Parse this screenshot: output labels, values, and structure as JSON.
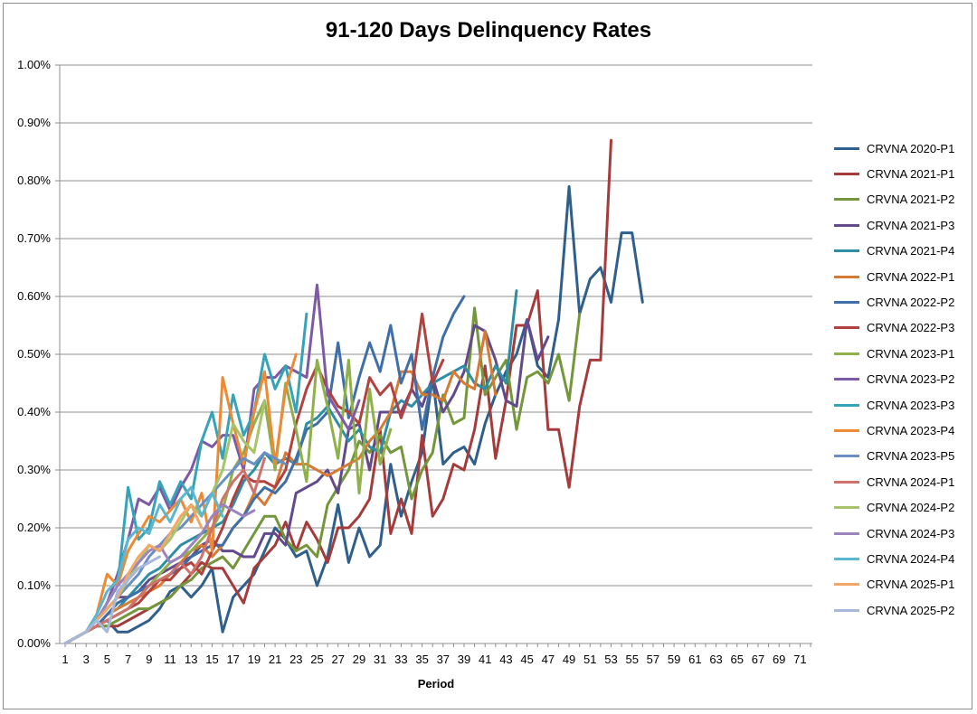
{
  "chart_data": {
    "type": "line",
    "title": "91-120 Days Delinquency Rates",
    "xlabel": "Period",
    "ylabel": "",
    "xlim": [
      1,
      72
    ],
    "ylim": [
      0,
      0.01
    ],
    "x_tick_labels": [
      "1",
      "3",
      "5",
      "7",
      "9",
      "11",
      "13",
      "15",
      "17",
      "19",
      "21",
      "23",
      "25",
      "27",
      "29",
      "31",
      "33",
      "35",
      "37",
      "39",
      "41",
      "43",
      "45",
      "47",
      "49",
      "51",
      "53",
      "55",
      "57",
      "59",
      "61",
      "63",
      "65",
      "67",
      "69",
      "71"
    ],
    "y_tick_labels": [
      "0.00%",
      "0.10%",
      "0.20%",
      "0.30%",
      "0.40%",
      "0.50%",
      "0.60%",
      "0.70%",
      "0.80%",
      "0.90%",
      "1.00%"
    ],
    "y_ticks": [
      0,
      0.001,
      0.002,
      0.003,
      0.004,
      0.005,
      0.006,
      0.007,
      0.008,
      0.009,
      0.01
    ],
    "grid": true,
    "legend_position": "right",
    "series": [
      {
        "name": "CRVNA 2020-P1",
        "color": "#2f5f8a",
        "x_start": 1,
        "values": [
          0,
          0.0001,
          0.0002,
          0.0003,
          0.0004,
          0.0002,
          0.0002,
          0.0003,
          0.0004,
          0.0006,
          0.0009,
          0.001,
          0.0008,
          0.001,
          0.0013,
          0.0002,
          0.0008,
          0.001,
          0.0012,
          0.0016,
          0.002,
          0.0018,
          0.0015,
          0.0016,
          0.001,
          0.0015,
          0.0024,
          0.0014,
          0.002,
          0.0015,
          0.0017,
          0.0031,
          0.0022,
          0.0028,
          0.0033,
          0.0046,
          0.0031,
          0.0033,
          0.0034,
          0.0031,
          0.0038,
          0.0043,
          0.0047,
          0.005,
          0.0056,
          0.0048,
          0.0046,
          0.0056,
          0.0079,
          0.0057,
          0.0063,
          0.0065,
          0.0059,
          0.0071,
          0.0071,
          0.0059
        ]
      },
      {
        "name": "CRVNA 2021-P1",
        "color": "#a53b3a",
        "x_start": 1,
        "values": [
          0,
          0.0001,
          0.0002,
          0.0003,
          0.0003,
          0.0003,
          0.0004,
          0.0005,
          0.0006,
          0.0007,
          0.0008,
          0.001,
          0.0012,
          0.0014,
          0.0013,
          0.0013,
          0.001,
          0.0007,
          0.0013,
          0.0015,
          0.0017,
          0.0021,
          0.0016,
          0.0021,
          0.0018,
          0.0014,
          0.002,
          0.002,
          0.0022,
          0.0025,
          0.0037,
          0.0019,
          0.0025,
          0.0019,
          0.0036,
          0.0022,
          0.0025,
          0.0031,
          0.003,
          0.0037,
          0.0048,
          0.0032,
          0.0042,
          0.0055,
          0.0055,
          0.0061,
          0.0037,
          0.0037,
          0.0027,
          0.0041,
          0.0049,
          0.0049,
          0.0087
        ]
      },
      {
        "name": "CRVNA 2021-P2",
        "color": "#73973a",
        "x_start": 1,
        "values": [
          0,
          0.0001,
          0.0002,
          0.0003,
          0.0003,
          0.0004,
          0.0005,
          0.0006,
          0.0006,
          0.0007,
          0.0008,
          0.001,
          0.0011,
          0.0013,
          0.0014,
          0.0015,
          0.0013,
          0.0016,
          0.0019,
          0.0022,
          0.0022,
          0.0018,
          0.0016,
          0.0017,
          0.0015,
          0.0024,
          0.0027,
          0.003,
          0.0035,
          0.0033,
          0.0036,
          0.0033,
          0.0034,
          0.0025,
          0.003,
          0.0033,
          0.0043,
          0.0038,
          0.0039,
          0.0058,
          0.0043,
          0.0046,
          0.0049,
          0.0037,
          0.0046,
          0.0047,
          0.0045,
          0.005,
          0.0042,
          0.0057
        ]
      },
      {
        "name": "CRVNA 2021-P3",
        "color": "#634a8a",
        "x_start": 1,
        "values": [
          0,
          0.0001,
          0.0002,
          0.0004,
          0.0006,
          0.0008,
          0.0008,
          0.0009,
          0.0011,
          0.0012,
          0.0013,
          0.0014,
          0.0015,
          0.0017,
          0.0018,
          0.0016,
          0.0016,
          0.0015,
          0.0015,
          0.0019,
          0.0019,
          0.0017,
          0.0026,
          0.0027,
          0.0028,
          0.003,
          0.0026,
          0.0037,
          0.0038,
          0.003,
          0.004,
          0.004,
          0.004,
          0.0044,
          0.0041,
          0.0046,
          0.004,
          0.0043,
          0.0047,
          0.0055,
          0.0054,
          0.0049,
          0.0042,
          0.0041,
          0.0056,
          0.0049,
          0.0053
        ]
      },
      {
        "name": "CRVNA 2021-P4",
        "color": "#2e8fa4",
        "x_start": 1,
        "values": [
          0,
          0.0001,
          0.0002,
          0.0003,
          0.0005,
          0.0006,
          0.0008,
          0.001,
          0.0012,
          0.0013,
          0.0015,
          0.0017,
          0.0018,
          0.0019,
          0.002,
          0.0021,
          0.0024,
          0.0028,
          0.003,
          0.0033,
          0.0031,
          0.0032,
          0.0031,
          0.0038,
          0.0039,
          0.0041,
          0.0038,
          0.0035,
          0.0037,
          0.0034,
          0.0033,
          0.004,
          0.0042,
          0.0041,
          0.0043,
          0.0045,
          0.0046,
          0.0047,
          0.0048,
          0.0045,
          0.0044,
          0.0048,
          0.0045,
          0.0061
        ]
      },
      {
        "name": "CRVNA 2022-P1",
        "color": "#d77a34",
        "x_start": 1,
        "values": [
          0,
          0.0001,
          0.0002,
          0.0003,
          0.0005,
          0.0006,
          0.0007,
          0.0008,
          0.0009,
          0.001,
          0.0012,
          0.0014,
          0.0016,
          0.0017,
          0.0015,
          0.0017,
          0.002,
          0.0022,
          0.0026,
          0.0024,
          0.0027,
          0.0033,
          0.0031,
          0.0031,
          0.003,
          0.0029,
          0.003,
          0.0031,
          0.0032,
          0.0035,
          0.0037,
          0.004,
          0.0047,
          0.0047,
          0.0043,
          0.0043,
          0.0042,
          0.0047,
          0.0045,
          0.0044,
          0.0054,
          0.0043
        ]
      },
      {
        "name": "CRVNA 2022-P2",
        "color": "#3f6fa6",
        "x_start": 1,
        "values": [
          0,
          0.0001,
          0.0002,
          0.0003,
          0.0005,
          0.0007,
          0.0008,
          0.0009,
          0.001,
          0.0011,
          0.0012,
          0.0013,
          0.0015,
          0.0016,
          0.0017,
          0.0017,
          0.002,
          0.0022,
          0.0025,
          0.0027,
          0.0026,
          0.0028,
          0.0032,
          0.0037,
          0.0038,
          0.004,
          0.0052,
          0.0039,
          0.0046,
          0.0052,
          0.0047,
          0.0055,
          0.0045,
          0.005,
          0.0037,
          0.0046,
          0.0053,
          0.0057,
          0.006
        ]
      },
      {
        "name": "CRVNA 2022-P3",
        "color": "#b0423f",
        "x_start": 1,
        "values": [
          0,
          0.0001,
          0.0002,
          0.0003,
          0.0004,
          0.0005,
          0.0006,
          0.0007,
          0.0009,
          0.0011,
          0.0011,
          0.0013,
          0.0014,
          0.0012,
          0.0016,
          0.002,
          0.0025,
          0.0029,
          0.0028,
          0.0028,
          0.0027,
          0.003,
          0.0038,
          0.0044,
          0.0048,
          0.0044,
          0.0041,
          0.004,
          0.0038,
          0.0046,
          0.0043,
          0.0045,
          0.0039,
          0.0044,
          0.0057,
          0.0045,
          0.0049
        ]
      },
      {
        "name": "CRVNA 2023-P1",
        "color": "#8fb04a",
        "x_start": 1,
        "values": [
          0,
          0.0001,
          0.0002,
          0.0003,
          0.0004,
          0.0005,
          0.0006,
          0.0008,
          0.001,
          0.0012,
          0.0014,
          0.0015,
          0.0016,
          0.0018,
          0.002,
          0.0023,
          0.003,
          0.0033,
          0.0038,
          0.0042,
          0.003,
          0.0045,
          0.0037,
          0.0028,
          0.0049,
          0.0041,
          0.0032,
          0.0049,
          0.0026,
          0.0044,
          0.0031,
          0.0037
        ]
      },
      {
        "name": "CRVNA 2023-P2",
        "color": "#7d5aa3",
        "x_start": 1,
        "values": [
          0,
          0.0001,
          0.0002,
          0.0004,
          0.0007,
          0.0012,
          0.0018,
          0.0025,
          0.0024,
          0.0027,
          0.0023,
          0.0027,
          0.003,
          0.0035,
          0.0034,
          0.0036,
          0.0036,
          0.003,
          0.0044,
          0.0046,
          0.0046,
          0.0048,
          0.0047,
          0.0046,
          0.0062,
          0.0043,
          0.004,
          0.0037,
          0.0042
        ]
      },
      {
        "name": "CRVNA 2023-P3",
        "color": "#36a3b9",
        "x_start": 1,
        "values": [
          0,
          0.0001,
          0.0002,
          0.0004,
          0.0007,
          0.001,
          0.0027,
          0.0018,
          0.002,
          0.0028,
          0.0024,
          0.0028,
          0.0025,
          0.0035,
          0.004,
          0.0032,
          0.0043,
          0.0036,
          0.004,
          0.005,
          0.0044,
          0.0048,
          0.004,
          0.0057
        ]
      },
      {
        "name": "CRVNA 2023-P4",
        "color": "#ec8a35",
        "x_start": 1,
        "values": [
          0,
          0.0001,
          0.0002,
          0.0005,
          0.0012,
          0.001,
          0.0016,
          0.0019,
          0.0022,
          0.0021,
          0.0023,
          0.0025,
          0.0021,
          0.0026,
          0.0016,
          0.0046,
          0.0038,
          0.0031,
          0.004,
          0.0047,
          0.0031,
          0.0044,
          0.005
        ]
      },
      {
        "name": "CRVNA 2023-P5",
        "color": "#6b8fc2",
        "x_start": 1,
        "values": [
          0,
          0.0001,
          0.0002,
          0.0004,
          0.0006,
          0.0008,
          0.001,
          0.0012,
          0.0015,
          0.0017,
          0.0019,
          0.002,
          0.0022,
          0.0024,
          0.0026,
          0.0028,
          0.003,
          0.0032,
          0.0031,
          0.0033,
          0.0032,
          0.0031
        ]
      },
      {
        "name": "CRVNA 2024-P1",
        "color": "#d0716c",
        "x_start": 1,
        "values": [
          0,
          0.0001,
          0.0002,
          0.0003,
          0.0004,
          0.0005,
          0.0006,
          0.0008,
          0.001,
          0.0011,
          0.0012,
          0.0014,
          0.0012,
          0.0015,
          0.002,
          0.0025,
          0.0028,
          0.003,
          0.0026,
          0.0032
        ]
      },
      {
        "name": "CRVNA 2024-P2",
        "color": "#a6c46a",
        "x_start": 1,
        "values": [
          0,
          0.0001,
          0.0002,
          0.0004,
          0.0006,
          0.0008,
          0.0011,
          0.0014,
          0.0017,
          0.0016,
          0.0018,
          0.0021,
          0.0024,
          0.0022,
          0.0026,
          0.003,
          0.0038,
          0.0035,
          0.0033,
          0.0042
        ]
      },
      {
        "name": "CRVNA 2024-P3",
        "color": "#9b84bd",
        "x_start": 1,
        "values": [
          0,
          0.0001,
          0.0002,
          0.0004,
          0.0007,
          0.001,
          0.0012,
          0.0014,
          0.0016,
          0.0017,
          0.0014,
          0.0015,
          0.0017,
          0.0019,
          0.0022,
          0.0024,
          0.0023,
          0.0022,
          0.0023
        ]
      },
      {
        "name": "CRVNA 2024-P4",
        "color": "#5bb7d0",
        "x_start": 1,
        "values": [
          0,
          0.0001,
          0.0002,
          0.0005,
          0.0009,
          0.0011,
          0.0018,
          0.002,
          0.0019,
          0.0024,
          0.0021,
          0.0025,
          0.0027,
          0.0022,
          0.0026,
          0.0022
        ]
      },
      {
        "name": "CRVNA 2025-P1",
        "color": "#f2a766",
        "x_start": 1,
        "values": [
          0,
          0.0001,
          0.0002,
          0.0004,
          0.0006,
          0.0008,
          0.0012,
          0.0015,
          0.0017,
          0.0016,
          0.0019,
          0.0022,
          0.0024,
          0.002
        ]
      },
      {
        "name": "CRVNA 2025-P2",
        "color": "#a7b8da",
        "x_start": 1,
        "values": [
          0,
          0.0001,
          0.0002,
          0.0004,
          0.0002,
          0.0009,
          0.0011,
          0.0013,
          0.0014,
          0.0015
        ]
      }
    ]
  }
}
